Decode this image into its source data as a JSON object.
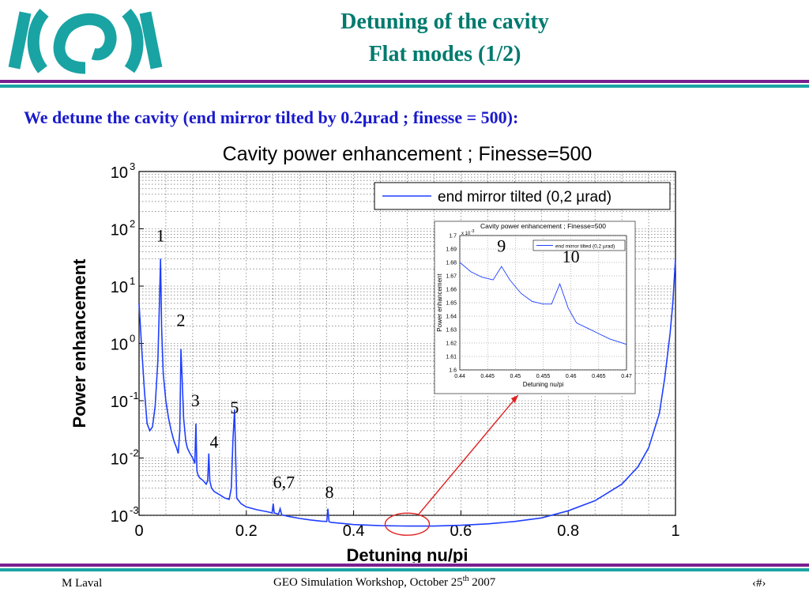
{
  "slide": {
    "title_line1": "Detuning of the cavity",
    "title_line2": "Flat modes (1/2)",
    "subtitle": "We detune the cavity (end mirror tilted by 0.2µrad ; finesse = 500):",
    "footer_left": "M Laval",
    "footer_center_main": "GEO Simulation Workshop,  October 25",
    "footer_center_sup": "th",
    "footer_center_year": " 2007",
    "footer_right": "‹#›",
    "colors": {
      "title": "#007a6e",
      "subtitle": "#1a1acc",
      "rule_purple": "#7a1f8f",
      "rule_teal": "#1aa3a3",
      "curve": "#1f3fff",
      "annotation": "#e02020",
      "logo": "#1aa3a3"
    }
  },
  "chart_data": [
    {
      "type": "line",
      "title": "Cavity power enhancement ; Finesse=500",
      "xlabel": "Detuning nu/pi",
      "ylabel": "Power enhancement",
      "y_scale": "log",
      "xlim": [
        0,
        1
      ],
      "ylim": [
        0.001,
        1000
      ],
      "grid": true,
      "legend_position": "top-right",
      "x_ticks": [
        0,
        0.2,
        0.4,
        0.6,
        0.8,
        1
      ],
      "x_tick_labels": [
        "0",
        "0.2",
        "0.4",
        "0.6",
        "0.8",
        "1"
      ],
      "y_tick_exponents": [
        3,
        2,
        1,
        0,
        -1,
        -2,
        -3
      ],
      "series": [
        {
          "name": "end mirror tilted (0,2 µrad)",
          "x": [
            0.0,
            0.005,
            0.01,
            0.015,
            0.02,
            0.025,
            0.03,
            0.035,
            0.038,
            0.04,
            0.042,
            0.045,
            0.05,
            0.055,
            0.06,
            0.065,
            0.07,
            0.073,
            0.076,
            0.078,
            0.08,
            0.083,
            0.087,
            0.09,
            0.095,
            0.1,
            0.104,
            0.106,
            0.108,
            0.11,
            0.113,
            0.12,
            0.125,
            0.128,
            0.13,
            0.132,
            0.135,
            0.14,
            0.15,
            0.16,
            0.168,
            0.172,
            0.175,
            0.178,
            0.18,
            0.182,
            0.19,
            0.2,
            0.22,
            0.24,
            0.248,
            0.25,
            0.252,
            0.26,
            0.263,
            0.266,
            0.28,
            0.3,
            0.32,
            0.34,
            0.35,
            0.352,
            0.354,
            0.356,
            0.36,
            0.38,
            0.4,
            0.45,
            0.5,
            0.55,
            0.6,
            0.65,
            0.7,
            0.75,
            0.8,
            0.85,
            0.9,
            0.93,
            0.95,
            0.97,
            0.98,
            0.99,
            0.995,
            1.0
          ],
          "y": [
            5,
            0.8,
            0.15,
            0.04,
            0.03,
            0.035,
            0.08,
            0.5,
            5,
            30,
            2,
            0.3,
            0.1,
            0.05,
            0.03,
            0.02,
            0.015,
            0.012,
            0.03,
            0.8,
            0.3,
            0.05,
            0.02,
            0.015,
            0.012,
            0.01,
            0.008,
            0.04,
            0.006,
            0.005,
            0.0045,
            0.004,
            0.0035,
            0.004,
            0.012,
            0.004,
            0.003,
            0.0026,
            0.0023,
            0.002,
            0.0019,
            0.003,
            0.02,
            0.07,
            0.012,
            0.002,
            0.0016,
            0.0014,
            0.00125,
            0.00115,
            0.0011,
            0.0016,
            0.0011,
            0.00105,
            0.0013,
            0.00102,
            0.00095,
            0.00088,
            0.00083,
            0.00079,
            0.00078,
            0.0013,
            0.00078,
            0.00076,
            0.00075,
            0.00072,
            0.00069,
            0.00066,
            0.00065,
            0.00065,
            0.00067,
            0.00071,
            0.00078,
            0.0009,
            0.0012,
            0.0018,
            0.0035,
            0.007,
            0.015,
            0.06,
            0.25,
            1.5,
            5,
            30
          ]
        }
      ],
      "peak_labels": [
        {
          "text": "1",
          "x": 0.04,
          "y": 60
        },
        {
          "text": "2",
          "x": 0.078,
          "y": 2
        },
        {
          "text": "3",
          "x": 0.105,
          "y": 0.08
        },
        {
          "text": "4",
          "x": 0.14,
          "y": 0.015
        },
        {
          "text": "5",
          "x": 0.178,
          "y": 0.06
        },
        {
          "text": "6,7",
          "x": 0.27,
          "y": 0.003
        },
        {
          "text": "8",
          "x": 0.355,
          "y": 0.002
        }
      ],
      "highlight_region": {
        "x": 0.5,
        "y": 0.0007
      }
    },
    {
      "type": "line",
      "title": "Cavity power enhancement ; Finesse=500",
      "xlabel": "Detuning nu/pi",
      "ylabel": "Power enhancement",
      "y_multiplier_label": "x 10",
      "y_multiplier_exponent": "-3",
      "xlim": [
        0.44,
        0.47
      ],
      "ylim": [
        1.6,
        1.7
      ],
      "grid": true,
      "legend_position": "top-right",
      "x_tick_labels": [
        "0.44",
        "0.445",
        "0.45",
        "0.455",
        "0.46",
        "0.465",
        "0.47"
      ],
      "y_tick_labels": [
        "1.6",
        "1.61",
        "1.62",
        "1.63",
        "1.64",
        "1.65",
        "1.66",
        "1.67",
        "1.68",
        "1.69",
        "1.7"
      ],
      "series": [
        {
          "name": "end mirror tilted (0,2 µrad)",
          "x": [
            0.44,
            0.442,
            0.444,
            0.446,
            0.4475,
            0.449,
            0.451,
            0.453,
            0.455,
            0.4565,
            0.458,
            0.4595,
            0.461,
            0.463,
            0.465,
            0.467,
            0.47
          ],
          "y": [
            1.68,
            1.673,
            1.669,
            1.667,
            1.677,
            1.667,
            1.657,
            1.651,
            1.649,
            1.649,
            1.664,
            1.646,
            1.635,
            1.631,
            1.627,
            1.623,
            1.619
          ]
        }
      ],
      "peak_labels": [
        {
          "text": "9",
          "x": 0.4475,
          "y": 1.681
        },
        {
          "text": "10",
          "x": 0.46,
          "y": 1.673
        }
      ]
    }
  ]
}
